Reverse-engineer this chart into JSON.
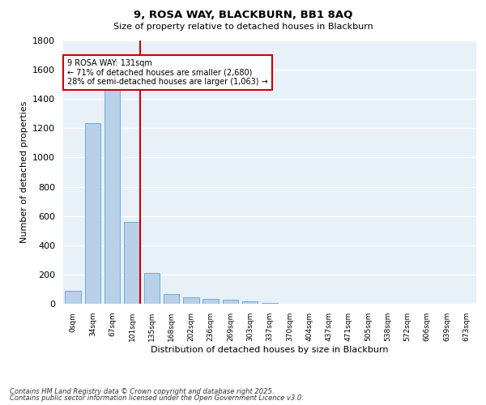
{
  "title1": "9, ROSA WAY, BLACKBURN, BB1 8AQ",
  "title2": "Size of property relative to detached houses in Blackburn",
  "xlabel": "Distribution of detached houses by size in Blackburn",
  "ylabel": "Number of detached properties",
  "categories": [
    "0sqm",
    "34sqm",
    "67sqm",
    "101sqm",
    "135sqm",
    "168sqm",
    "202sqm",
    "236sqm",
    "269sqm",
    "303sqm",
    "337sqm",
    "370sqm",
    "404sqm",
    "437sqm",
    "471sqm",
    "505sqm",
    "538sqm",
    "572sqm",
    "606sqm",
    "639sqm",
    "673sqm"
  ],
  "values": [
    90,
    1235,
    1515,
    560,
    210,
    65,
    45,
    35,
    27,
    15,
    8,
    2,
    1,
    1,
    0,
    0,
    0,
    0,
    0,
    0,
    0
  ],
  "bar_color": "#b8d0e8",
  "bar_edge_color": "#6aaed6",
  "vline_color": "#cc0000",
  "vline_x_index": 3,
  "annotation_text": "9 ROSA WAY: 131sqm\n← 71% of detached houses are smaller (2,680)\n28% of semi-detached houses are larger (1,063) →",
  "annotation_box_color": "#cc0000",
  "footnote1": "Contains HM Land Registry data © Crown copyright and database right 2025.",
  "footnote2": "Contains public sector information licensed under the Open Government Licence v3.0.",
  "bg_color": "#e8f0f8",
  "ylim": [
    0,
    1800
  ],
  "yticks": [
    0,
    200,
    400,
    600,
    800,
    1000,
    1200,
    1400,
    1600,
    1800
  ]
}
